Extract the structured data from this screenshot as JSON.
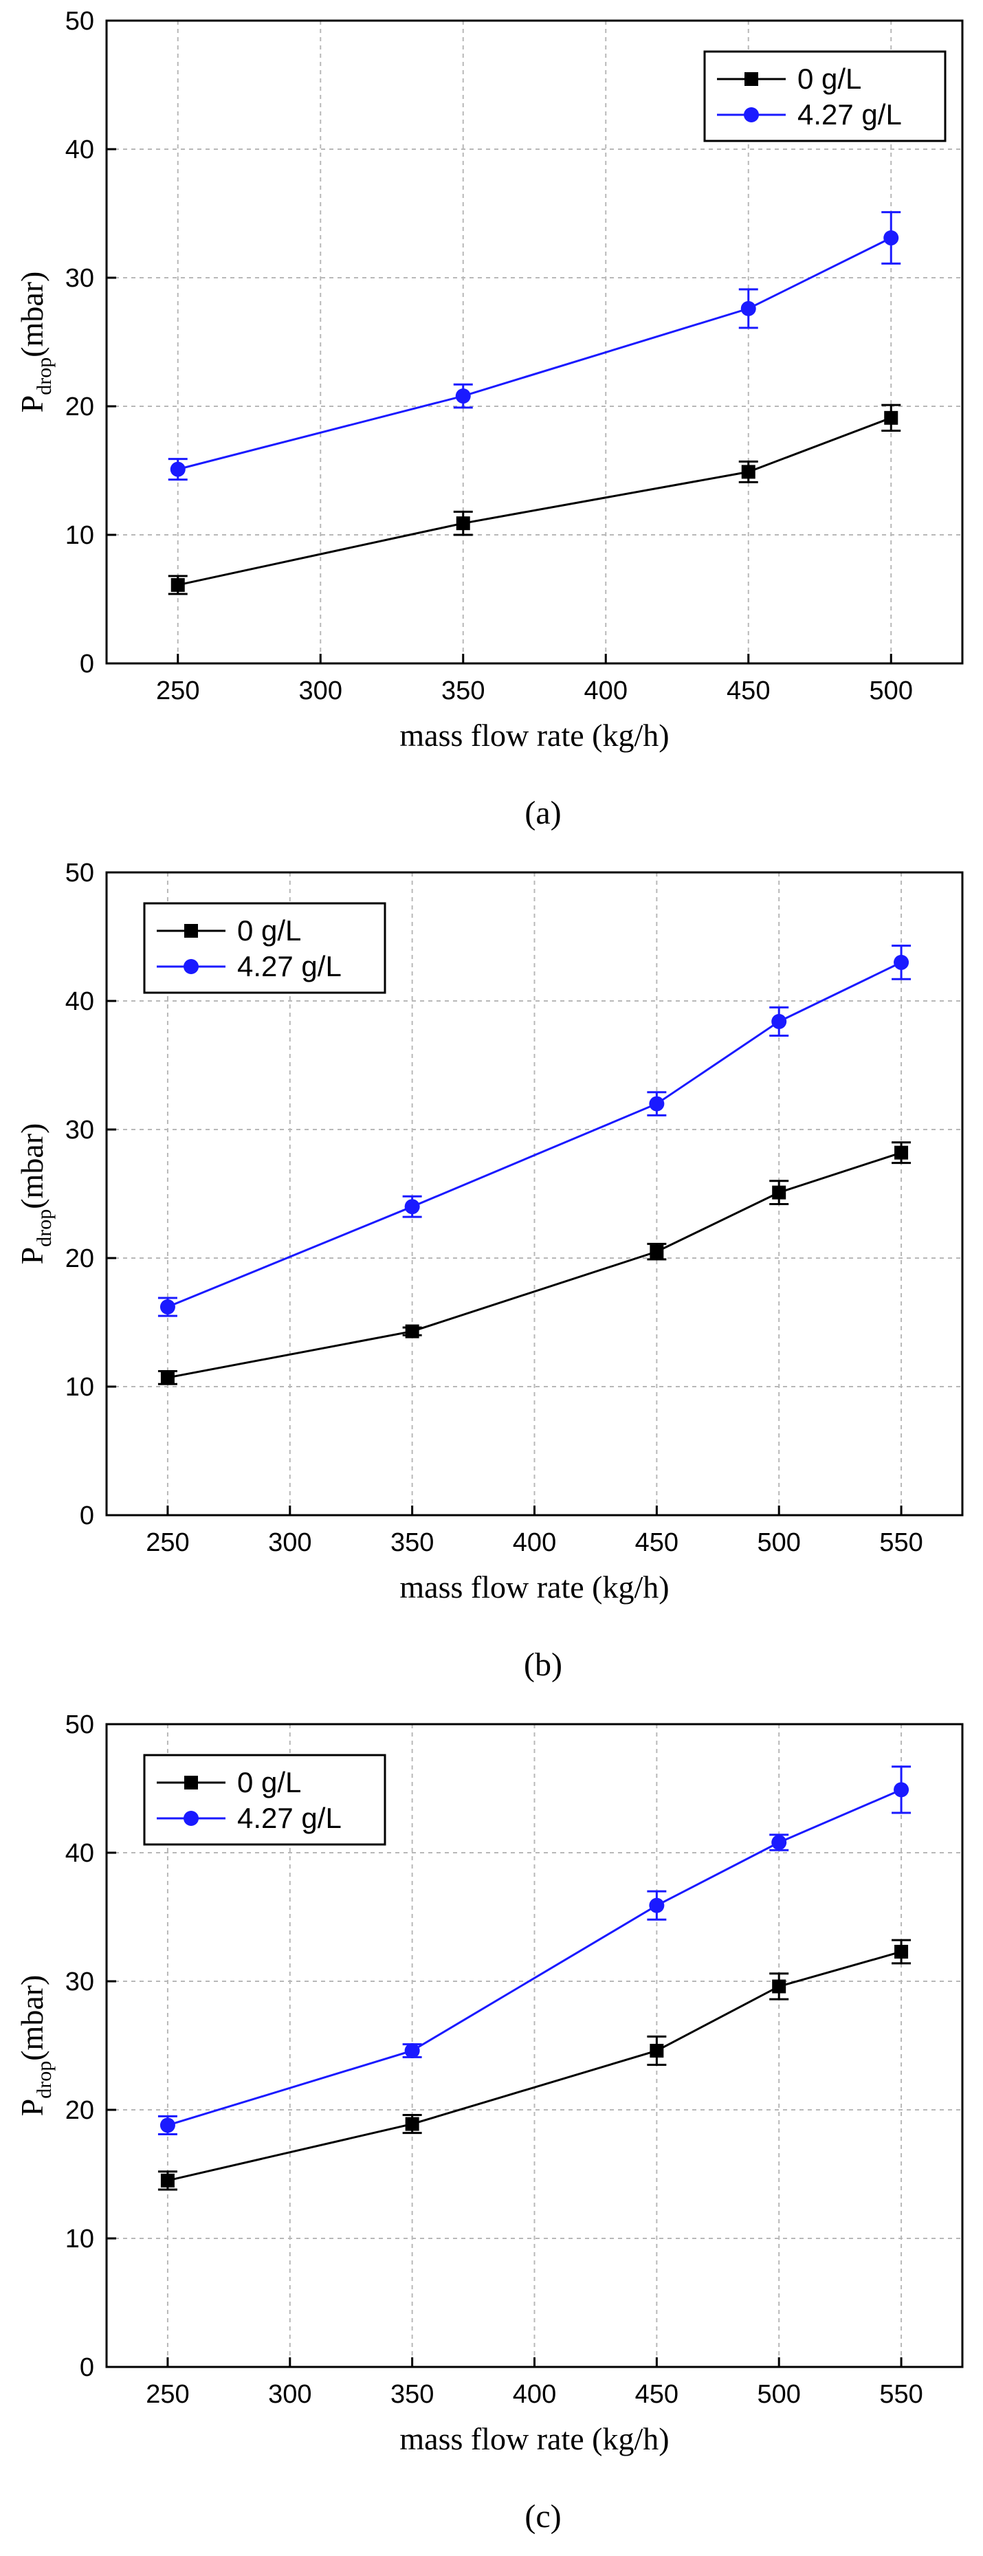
{
  "chart_data": [
    {
      "type": "line",
      "panel_label": "(a)",
      "xlabel": "mass flow rate (kg/h)",
      "ylabel_main": "P",
      "ylabel_sub": "drop",
      "ylabel_unit": "(mbar)",
      "xlim": [
        225,
        525
      ],
      "ylim": [
        0,
        50
      ],
      "xticks": [
        250,
        300,
        350,
        400,
        450,
        500
      ],
      "yticks": [
        0,
        10,
        20,
        30,
        40,
        50
      ],
      "grid": true,
      "legend_position": "top-right",
      "series": [
        {
          "name": "0 g/L",
          "color": "#000000",
          "marker": "square",
          "x": [
            250,
            350,
            450,
            500
          ],
          "values": [
            6.1,
            10.9,
            14.9,
            19.1
          ],
          "errors": [
            0.7,
            0.9,
            0.8,
            1.0
          ]
        },
        {
          "name": "4.27 g/L",
          "color": "#1a1aff",
          "marker": "circle",
          "x": [
            250,
            350,
            450,
            500
          ],
          "values": [
            15.1,
            20.8,
            27.6,
            33.1
          ],
          "errors": [
            0.8,
            0.9,
            1.5,
            2.0
          ]
        }
      ]
    },
    {
      "type": "line",
      "panel_label": "(b)",
      "xlabel": "mass flow rate (kg/h)",
      "ylabel_main": "P",
      "ylabel_sub": "drop",
      "ylabel_unit": "(mbar)",
      "xlim": [
        225,
        575
      ],
      "ylim": [
        0,
        50
      ],
      "xticks": [
        250,
        300,
        350,
        400,
        450,
        500,
        550
      ],
      "yticks": [
        0,
        10,
        20,
        30,
        40,
        50
      ],
      "grid": true,
      "legend_position": "top-left",
      "series": [
        {
          "name": "0 g/L",
          "color": "#000000",
          "marker": "square",
          "x": [
            250,
            350,
            450,
            500,
            550
          ],
          "values": [
            10.7,
            14.3,
            20.5,
            25.1,
            28.2
          ],
          "errors": [
            0.5,
            0.3,
            0.6,
            0.9,
            0.8
          ]
        },
        {
          "name": "4.27 g/L",
          "color": "#1a1aff",
          "marker": "circle",
          "x": [
            250,
            350,
            450,
            500,
            550
          ],
          "values": [
            16.2,
            24.0,
            32.0,
            38.4,
            43.0
          ],
          "errors": [
            0.7,
            0.8,
            0.9,
            1.1,
            1.3
          ]
        }
      ]
    },
    {
      "type": "line",
      "panel_label": "(c)",
      "xlabel": "mass flow rate (kg/h)",
      "ylabel_main": "P",
      "ylabel_sub": "drop",
      "ylabel_unit": "(mbar)",
      "xlim": [
        225,
        575
      ],
      "ylim": [
        0,
        50
      ],
      "xticks": [
        250,
        300,
        350,
        400,
        450,
        500,
        550
      ],
      "yticks": [
        0,
        10,
        20,
        30,
        40,
        50
      ],
      "grid": true,
      "legend_position": "top-left",
      "series": [
        {
          "name": "0 g/L",
          "color": "#000000",
          "marker": "square",
          "x": [
            250,
            350,
            450,
            500,
            550
          ],
          "values": [
            14.5,
            18.9,
            24.6,
            29.6,
            32.3
          ],
          "errors": [
            0.7,
            0.7,
            1.1,
            1.0,
            0.9
          ]
        },
        {
          "name": "4.27 g/L",
          "color": "#1a1aff",
          "marker": "circle",
          "x": [
            250,
            350,
            450,
            500,
            550
          ],
          "values": [
            18.8,
            24.6,
            35.9,
            40.8,
            44.9
          ],
          "errors": [
            0.7,
            0.5,
            1.1,
            0.6,
            1.8
          ]
        }
      ]
    }
  ]
}
